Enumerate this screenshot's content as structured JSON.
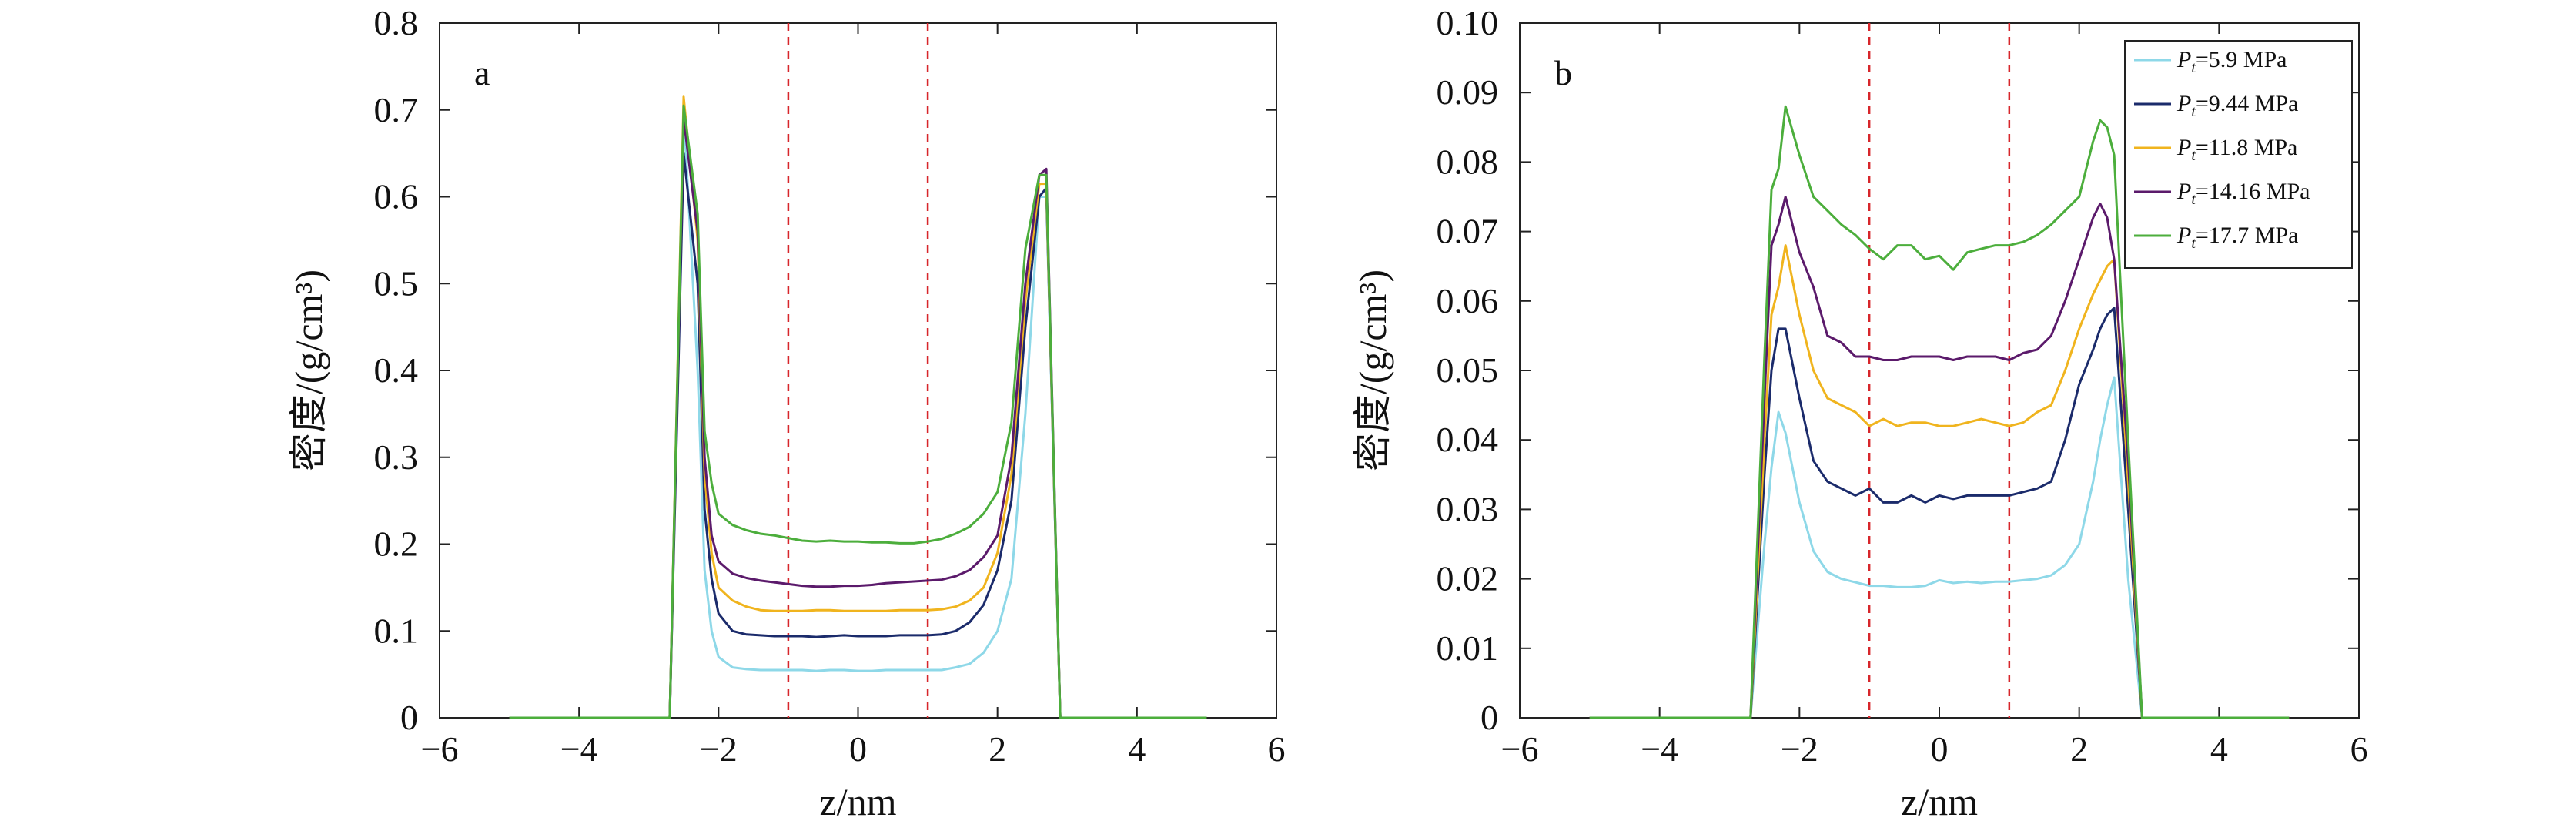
{
  "figure": {
    "panel_labels": [
      "a",
      "b"
    ]
  },
  "chart_data": [
    {
      "type": "line",
      "panel_label": "a",
      "xlabel": "z/nm",
      "ylabel": "密度/(g/cm³)",
      "xlim": [
        -6,
        6
      ],
      "ylim": [
        0,
        0.8
      ],
      "xticks": [
        -6,
        -4,
        -2,
        0,
        2,
        4,
        6
      ],
      "xtick_labels": [
        "−6",
        "−4",
        "−2",
        "0",
        "2",
        "4",
        "6"
      ],
      "yticks": [
        0,
        0.1,
        0.2,
        0.3,
        0.4,
        0.5,
        0.6,
        0.7,
        0.8
      ],
      "ytick_labels": [
        "0",
        "0.1",
        "0.2",
        "0.3",
        "0.4",
        "0.5",
        "0.6",
        "0.7",
        "0.8"
      ],
      "grid": false,
      "vlines": [
        -1,
        1
      ],
      "vline_color": "#d7262b",
      "x": [
        -5,
        -4.5,
        -4,
        -3.5,
        -3,
        -2.7,
        -2.5,
        -2.3,
        -2.2,
        -2.1,
        -2,
        -1.8,
        -1.6,
        -1.4,
        -1.2,
        -1,
        -0.8,
        -0.6,
        -0.4,
        -0.2,
        0,
        0.2,
        0.4,
        0.6,
        0.8,
        1,
        1.2,
        1.4,
        1.6,
        1.8,
        2,
        2.2,
        2.4,
        2.6,
        2.7,
        2.9,
        3,
        3.5,
        4,
        4.5,
        5
      ],
      "series": [
        {
          "color": "#8ed8e8",
          "values": [
            0,
            0,
            0,
            0,
            0,
            0,
            0.7,
            0.4,
            0.17,
            0.1,
            0.07,
            0.058,
            0.056,
            0.055,
            0.055,
            0.055,
            0.055,
            0.054,
            0.055,
            0.055,
            0.054,
            0.054,
            0.055,
            0.055,
            0.055,
            0.055,
            0.055,
            0.058,
            0.062,
            0.075,
            0.1,
            0.16,
            0.35,
            0.6,
            0.6,
            0,
            0,
            0,
            0,
            0,
            0
          ]
        },
        {
          "color": "#1b2b6b",
          "values": [
            0,
            0,
            0,
            0,
            0,
            0,
            0.65,
            0.5,
            0.24,
            0.16,
            0.12,
            0.1,
            0.096,
            0.095,
            0.094,
            0.094,
            0.094,
            0.093,
            0.094,
            0.095,
            0.094,
            0.094,
            0.094,
            0.095,
            0.095,
            0.095,
            0.096,
            0.1,
            0.11,
            0.13,
            0.17,
            0.25,
            0.45,
            0.6,
            0.61,
            0,
            0,
            0,
            0,
            0,
            0
          ]
        },
        {
          "color": "#f0b41e",
          "values": [
            0,
            0,
            0,
            0,
            0,
            0,
            0.715,
            0.55,
            0.28,
            0.19,
            0.15,
            0.135,
            0.128,
            0.124,
            0.123,
            0.123,
            0.123,
            0.124,
            0.124,
            0.123,
            0.123,
            0.123,
            0.123,
            0.124,
            0.124,
            0.124,
            0.125,
            0.128,
            0.135,
            0.15,
            0.19,
            0.28,
            0.48,
            0.615,
            0.615,
            0,
            0,
            0,
            0,
            0,
            0
          ]
        },
        {
          "color": "#5b1a6b",
          "values": [
            0,
            0,
            0,
            0,
            0,
            0,
            0.69,
            0.56,
            0.3,
            0.21,
            0.18,
            0.166,
            0.161,
            0.158,
            0.156,
            0.154,
            0.152,
            0.151,
            0.151,
            0.152,
            0.152,
            0.153,
            0.155,
            0.156,
            0.157,
            0.158,
            0.159,
            0.163,
            0.17,
            0.185,
            0.21,
            0.3,
            0.5,
            0.625,
            0.632,
            0,
            0,
            0,
            0,
            0,
            0
          ]
        },
        {
          "color": "#4cae3c",
          "values": [
            0,
            0,
            0,
            0,
            0,
            0,
            0.705,
            0.58,
            0.33,
            0.27,
            0.235,
            0.222,
            0.216,
            0.212,
            0.21,
            0.207,
            0.204,
            0.203,
            0.204,
            0.203,
            0.203,
            0.202,
            0.202,
            0.201,
            0.201,
            0.203,
            0.206,
            0.212,
            0.22,
            0.235,
            0.26,
            0.34,
            0.54,
            0.625,
            0.625,
            0,
            0,
            0,
            0,
            0,
            0
          ]
        }
      ]
    },
    {
      "type": "line",
      "panel_label": "b",
      "xlabel": "z/nm",
      "ylabel": "密度/(g/cm³)",
      "xlim": [
        -6,
        6
      ],
      "ylim": [
        0,
        0.1
      ],
      "xticks": [
        -6,
        -4,
        -2,
        0,
        2,
        4,
        6
      ],
      "xtick_labels": [
        "−6",
        "−4",
        "−2",
        "0",
        "2",
        "4",
        "6"
      ],
      "yticks": [
        0,
        0.01,
        0.02,
        0.03,
        0.04,
        0.05,
        0.06,
        0.07,
        0.08,
        0.09,
        0.1
      ],
      "ytick_labels": [
        "0",
        "0.01",
        "0.02",
        "0.03",
        "0.04",
        "0.05",
        "0.06",
        "0.07",
        "0.08",
        "0.09",
        "0.10"
      ],
      "grid": false,
      "vlines": [
        -1,
        1
      ],
      "vline_color": "#d7262b",
      "legend_position": "top-right",
      "x": [
        -5,
        -4.5,
        -4,
        -3.5,
        -3,
        -2.7,
        -2.5,
        -2.4,
        -2.3,
        -2.2,
        -2.0,
        -1.8,
        -1.6,
        -1.4,
        -1.2,
        -1.0,
        -0.8,
        -0.6,
        -0.4,
        -0.2,
        0,
        0.2,
        0.4,
        0.6,
        0.8,
        1.0,
        1.2,
        1.4,
        1.6,
        1.8,
        2.0,
        2.2,
        2.3,
        2.4,
        2.5,
        2.7,
        2.9,
        3.5,
        4,
        4.5,
        5
      ],
      "series": [
        {
          "name_symbol": "P",
          "name_subscript": "t",
          "name_value": "=5.9 MPa",
          "color": "#8ed8e8",
          "values": [
            0,
            0,
            0,
            0,
            0,
            0,
            0.025,
            0.036,
            0.044,
            0.041,
            0.031,
            0.024,
            0.021,
            0.02,
            0.0195,
            0.019,
            0.019,
            0.0188,
            0.0188,
            0.019,
            0.0198,
            0.0194,
            0.0196,
            0.0194,
            0.0196,
            0.0196,
            0.0198,
            0.02,
            0.0205,
            0.022,
            0.025,
            0.034,
            0.04,
            0.045,
            0.049,
            0.02,
            0,
            0,
            0,
            0,
            0
          ]
        },
        {
          "name_symbol": "P",
          "name_subscript": "t",
          "name_value": "=9.44 MPa",
          "color": "#1b2b6b",
          "values": [
            0,
            0,
            0,
            0,
            0,
            0,
            0.035,
            0.05,
            0.056,
            0.056,
            0.046,
            0.037,
            0.034,
            0.033,
            0.032,
            0.033,
            0.031,
            0.031,
            0.032,
            0.031,
            0.032,
            0.0315,
            0.032,
            0.032,
            0.032,
            0.032,
            0.0325,
            0.033,
            0.034,
            0.04,
            0.048,
            0.053,
            0.056,
            0.058,
            0.059,
            0.03,
            0,
            0,
            0,
            0,
            0
          ]
        },
        {
          "name_symbol": "P",
          "name_subscript": "t",
          "name_value": "=11.8 MPa",
          "color": "#f0b41e",
          "values": [
            0,
            0,
            0,
            0,
            0,
            0,
            0.04,
            0.058,
            0.062,
            0.068,
            0.058,
            0.05,
            0.046,
            0.045,
            0.044,
            0.042,
            0.043,
            0.042,
            0.0425,
            0.0425,
            0.042,
            0.042,
            0.0425,
            0.043,
            0.0425,
            0.042,
            0.0425,
            0.044,
            0.045,
            0.05,
            0.056,
            0.061,
            0.063,
            0.065,
            0.066,
            0.034,
            0,
            0,
            0,
            0,
            0
          ]
        },
        {
          "name_symbol": "P",
          "name_subscript": "t",
          "name_value": "=14.16 MPa",
          "color": "#5b1a6b",
          "values": [
            0,
            0,
            0,
            0,
            0,
            0,
            0.046,
            0.068,
            0.071,
            0.075,
            0.067,
            0.062,
            0.055,
            0.054,
            0.052,
            0.052,
            0.0515,
            0.0515,
            0.052,
            0.052,
            0.052,
            0.0515,
            0.052,
            0.052,
            0.052,
            0.0515,
            0.0525,
            0.053,
            0.055,
            0.06,
            0.066,
            0.072,
            0.074,
            0.072,
            0.066,
            0.037,
            0,
            0,
            0,
            0,
            0
          ]
        },
        {
          "name_symbol": "P",
          "name_subscript": "t",
          "name_value": "=17.7 MPa",
          "color": "#4cae3c",
          "values": [
            0,
            0,
            0,
            0,
            0,
            0,
            0.052,
            0.076,
            0.079,
            0.088,
            0.081,
            0.075,
            0.073,
            0.071,
            0.0695,
            0.0675,
            0.066,
            0.068,
            0.068,
            0.066,
            0.0665,
            0.0645,
            0.067,
            0.0675,
            0.068,
            0.068,
            0.0685,
            0.0695,
            0.071,
            0.073,
            0.075,
            0.083,
            0.086,
            0.085,
            0.081,
            0.04,
            0,
            0,
            0,
            0,
            0
          ]
        }
      ]
    }
  ]
}
